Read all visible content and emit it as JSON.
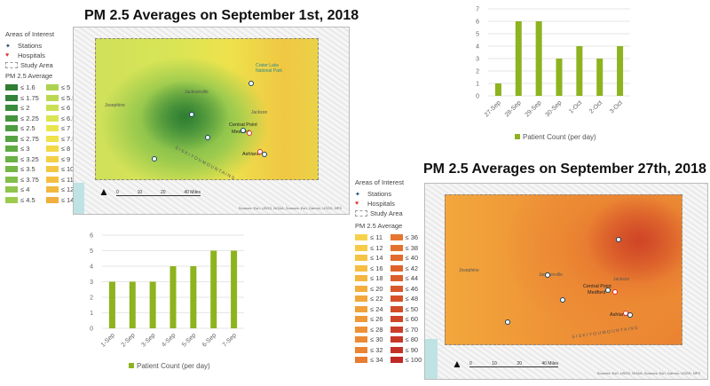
{
  "map1": {
    "title": "PM 2.5 Averages on September 1st, 2018",
    "legend": {
      "areas_header": "Areas of Interest",
      "stations": "Stations",
      "hospitals": "Hospitals",
      "study_area": "Study Area",
      "pm_header": "PM 2.5 Average",
      "col1": [
        {
          "label": "≤ 1.6",
          "color": "#2e7d32"
        },
        {
          "label": "≤ 1.75",
          "color": "#33843a"
        },
        {
          "label": "≤ 2",
          "color": "#3a8c3c"
        },
        {
          "label": "≤ 2.25",
          "color": "#43943e"
        },
        {
          "label": "≤ 2.5",
          "color": "#4c9c40"
        },
        {
          "label": "≤ 2.75",
          "color": "#55a342"
        },
        {
          "label": "≤ 3",
          "color": "#5fab44"
        },
        {
          "label": "≤ 3.25",
          "color": "#6ab246"
        },
        {
          "label": "≤ 3.5",
          "color": "#75b848"
        },
        {
          "label": "≤ 3.75",
          "color": "#82bf4a"
        },
        {
          "label": "≤ 4",
          "color": "#8fc54c"
        },
        {
          "label": "≤ 4.5",
          "color": "#9dcb4e"
        }
      ],
      "col2": [
        {
          "label": "≤ 5",
          "color": "#acd250"
        },
        {
          "label": "≤ 5.5",
          "color": "#bcd852"
        },
        {
          "label": "≤ 6",
          "color": "#cbdf52"
        },
        {
          "label": "≤ 6.5",
          "color": "#dbe452"
        },
        {
          "label": "≤ 7",
          "color": "#e8e64e"
        },
        {
          "label": "≤ 7.5",
          "color": "#efe24a"
        },
        {
          "label": "≤ 8",
          "color": "#f2d846"
        },
        {
          "label": "≤ 9",
          "color": "#f3cf44"
        },
        {
          "label": "≤ 10",
          "color": "#f3c742"
        },
        {
          "label": "≤ 11",
          "color": "#f2bf40"
        },
        {
          "label": "≤ 12",
          "color": "#f1b73e"
        },
        {
          "label": "≤ 14",
          "color": "#f0ae3c"
        }
      ]
    },
    "places": {
      "central_point": "Central Point",
      "medford": "Medford",
      "ashland": "Ashland",
      "jacksonville": "Jacksonville",
      "josephine": "Josephine",
      "jackson": "Jackson",
      "mountains": "S I S K I Y O U   M O U N T A I N S",
      "park": "Crater Lake National Park"
    },
    "scale": {
      "s0": "0",
      "s10": "10",
      "s20": "20",
      "s40": "40 Miles"
    },
    "north": "N",
    "credit": "Sources: Esri, USGS, NOAA, Sources: Esri, Garmin, USGS, NPS"
  },
  "map2": {
    "title": "PM 2.5 Averages on September 27th, 2018",
    "legend": {
      "areas_header": "Areas of Interest",
      "stations": "Stations",
      "hospitals": "Hospitals",
      "study_area": "Study Area",
      "pm_header": "PM 2.5 Average",
      "col1": [
        {
          "label": "≤ 11",
          "color": "#f6d24a"
        },
        {
          "label": "≤ 12",
          "color": "#f6cb47"
        },
        {
          "label": "≤ 14",
          "color": "#f5c444"
        },
        {
          "label": "≤ 16",
          "color": "#f5bd42"
        },
        {
          "label": "≤ 18",
          "color": "#f4b640"
        },
        {
          "label": "≤ 20",
          "color": "#f3ae3e"
        },
        {
          "label": "≤ 22",
          "color": "#f2a73c"
        },
        {
          "label": "≤ 24",
          "color": "#f1a03a"
        },
        {
          "label": "≤ 26",
          "color": "#ef9838"
        },
        {
          "label": "≤ 28",
          "color": "#ee9136"
        },
        {
          "label": "≤ 30",
          "color": "#ec8a34"
        },
        {
          "label": "≤ 32",
          "color": "#ea8332"
        },
        {
          "label": "≤ 34",
          "color": "#e87c30"
        }
      ],
      "col2": [
        {
          "label": "≤ 36",
          "color": "#e6762f"
        },
        {
          "label": "≤ 38",
          "color": "#e4702d"
        },
        {
          "label": "≤ 40",
          "color": "#e26a2c"
        },
        {
          "label": "≤ 42",
          "color": "#df642b"
        },
        {
          "label": "≤ 44",
          "color": "#dc5e2a"
        },
        {
          "label": "≤ 46",
          "color": "#d95829"
        },
        {
          "label": "≤ 48",
          "color": "#d65228"
        },
        {
          "label": "≤ 50",
          "color": "#d34c28"
        },
        {
          "label": "≤ 60",
          "color": "#cf4527"
        },
        {
          "label": "≤ 70",
          "color": "#cb3e27"
        },
        {
          "label": "≤ 80",
          "color": "#c73726"
        },
        {
          "label": "≤ 90",
          "color": "#c33026"
        },
        {
          "label": "≤ 100",
          "color": "#bf2826"
        }
      ]
    },
    "places": {
      "central_point": "Central Point",
      "medford": "Medford",
      "ashland": "Ashland",
      "jacksonville": "Jacksonville",
      "josephine": "Josephine",
      "jackson": "Jackson",
      "mountains": "S I S K I Y O U   M O U N T A I N S"
    },
    "scale": {
      "s0": "0",
      "s10": "10",
      "s20": "20",
      "s40": "40 Miles"
    },
    "north": "N",
    "credit": "Sources: Esri, USGS, NOAA, Sources: Esri, Garmin, USGS, NPS"
  },
  "chart_data": [
    {
      "type": "bar",
      "title": "",
      "categories": [
        "27-Sep",
        "28-Sep",
        "29-Sep",
        "30-Sep",
        "1-Oct",
        "2-Oct",
        "3-Oct"
      ],
      "values": [
        1,
        6,
        6,
        3,
        4,
        3,
        4
      ],
      "legend": "Patient Count (per day)",
      "ylim": [
        0,
        7
      ],
      "yticks": [
        0,
        1,
        2,
        3,
        4,
        5,
        6,
        7
      ],
      "color": "#8db31e",
      "grid": true,
      "legend_position": "bottom"
    },
    {
      "type": "bar",
      "title": "",
      "categories": [
        "1-Sep",
        "2-Sep",
        "3-Sep",
        "4-Sep",
        "5-Sep",
        "6-Sep",
        "7-Sep"
      ],
      "values": [
        3,
        3,
        3,
        4,
        4,
        5,
        5
      ],
      "legend": "Patient Count (per day)",
      "ylim": [
        0,
        6
      ],
      "yticks": [
        0,
        1,
        2,
        3,
        4,
        5,
        6
      ],
      "color": "#8db31e",
      "grid": true,
      "legend_position": "bottom"
    }
  ]
}
